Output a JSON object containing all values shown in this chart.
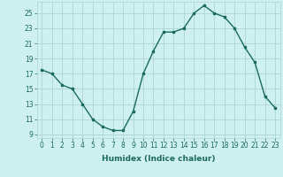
{
  "x": [
    0,
    1,
    2,
    3,
    4,
    5,
    6,
    7,
    8,
    9,
    10,
    11,
    12,
    13,
    14,
    15,
    16,
    17,
    18,
    19,
    20,
    21,
    22,
    23
  ],
  "y": [
    17.5,
    17,
    15.5,
    15,
    13,
    11,
    10,
    9.5,
    9.5,
    12,
    17,
    20,
    22.5,
    22.5,
    23,
    25,
    26,
    25,
    24.5,
    23,
    20.5,
    18.5,
    14,
    12.5
  ],
  "line_color": "#1a6b5a",
  "marker": "s",
  "markersize": 2.0,
  "linewidth": 1.0,
  "bg_color": "#cff0f0",
  "grid_color": "#aed4d4",
  "xlabel": "Humidex (Indice chaleur)",
  "xlim": [
    -0.5,
    23.5
  ],
  "ylim": [
    8.5,
    26.5
  ],
  "yticks": [
    9,
    11,
    13,
    15,
    17,
    19,
    21,
    23,
    25
  ],
  "xticks": [
    0,
    1,
    2,
    3,
    4,
    5,
    6,
    7,
    8,
    9,
    10,
    11,
    12,
    13,
    14,
    15,
    16,
    17,
    18,
    19,
    20,
    21,
    22,
    23
  ],
  "xtick_labels": [
    "0",
    "1",
    "2",
    "3",
    "4",
    "5",
    "6",
    "7",
    "8",
    "9",
    "10",
    "11",
    "12",
    "13",
    "14",
    "15",
    "16",
    "17",
    "18",
    "19",
    "20",
    "21",
    "22",
    "23"
  ],
  "tick_fontsize": 5.5,
  "xlabel_fontsize": 6.5,
  "text_color": "#1a6b5a"
}
